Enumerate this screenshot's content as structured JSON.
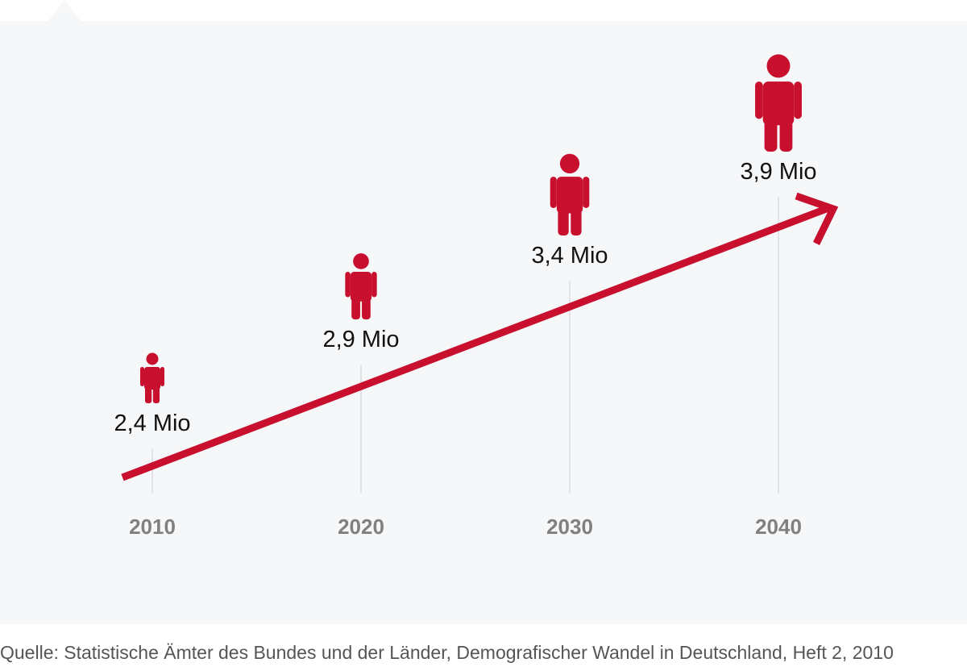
{
  "chart_data": {
    "type": "pictogram",
    "x": [
      2010,
      2020,
      2030,
      2040
    ],
    "values": [
      2.4,
      2.9,
      3.4,
      3.9
    ],
    "data_labels": [
      "2,4 Mio",
      "2,9 Mio",
      "3,4 Mio",
      "3,9 Mio"
    ],
    "tick_labels": [
      "2010",
      "2020",
      "2030",
      "2040"
    ],
    "grid": false,
    "trend_arrow": true
  },
  "source": "Quelle: Statistische Ämter des Bundes und der Länder, Demografischer Wandel in Deutschland, Heft 2, 2010",
  "colors": {
    "accent": "#c8102e",
    "label": "#111111",
    "tick": "#808080",
    "guide": "#e2e3e6",
    "panel": "#f6f7f9"
  },
  "icons": {
    "person": "person-icon",
    "trend": "trend-arrow-icon"
  }
}
